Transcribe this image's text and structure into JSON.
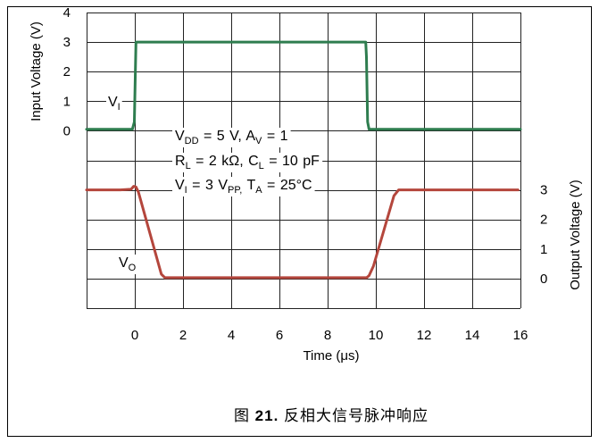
{
  "caption": {
    "prefix": "图 ",
    "number": "21.",
    "title": " 反相大信号脉冲响应"
  },
  "chart_data": {
    "type": "line",
    "xlabel": "Time (μs)",
    "xlim": [
      -2,
      16
    ],
    "x_ticks": [
      0,
      2,
      4,
      6,
      8,
      10,
      12,
      14,
      16
    ],
    "x_grid_step": 2,
    "y_grid_step": 1,
    "grid": true,
    "y_left": {
      "label": "Input Voltage (V)",
      "range": [
        -6,
        4
      ],
      "ticks": [
        0,
        1,
        2,
        3,
        4
      ]
    },
    "y_right": {
      "label": "Output Voltage (V)",
      "range": [
        -1,
        9
      ],
      "ticks": [
        0,
        1,
        2,
        3
      ]
    },
    "series": [
      {
        "label": {
          "base": "V",
          "sub": "I"
        },
        "axis": "left",
        "color": "#2e7d4f",
        "points": [
          [
            -2,
            0.05
          ],
          [
            -0.1,
            0.05
          ],
          [
            -0.02,
            0.3
          ],
          [
            0.05,
            3.0
          ],
          [
            9.58,
            3.0
          ],
          [
            9.61,
            2.5
          ],
          [
            9.66,
            0.3
          ],
          [
            9.72,
            0.05
          ],
          [
            16,
            0.05
          ]
        ]
      },
      {
        "label": {
          "base": "V",
          "sub": "O"
        },
        "axis": "right",
        "color": "#b4463c",
        "points": [
          [
            -2,
            3.0
          ],
          [
            -0.6,
            3.0
          ],
          [
            -0.15,
            3.02
          ],
          [
            -0.05,
            3.12
          ],
          [
            0.05,
            3.1
          ],
          [
            0.15,
            2.92
          ],
          [
            1.1,
            0.15
          ],
          [
            1.25,
            0.03
          ],
          [
            9.62,
            0.03
          ],
          [
            9.72,
            0.1
          ],
          [
            9.9,
            0.42
          ],
          [
            10.75,
            2.8
          ],
          [
            10.95,
            3.0
          ],
          [
            15.9,
            3.0
          ]
        ]
      }
    ],
    "conditions": [
      [
        {
          "t": "V"
        },
        {
          "t": "DD",
          "sub": true
        },
        {
          "t": " = 5 V, A"
        },
        {
          "t": "V",
          "sub": true
        },
        {
          "t": " = 1"
        }
      ],
      [
        {
          "t": "R"
        },
        {
          "t": "L",
          "sub": true
        },
        {
          "t": " = 2 kΩ, C"
        },
        {
          "t": "L",
          "sub": true
        },
        {
          "t": " = 10 pF"
        }
      ],
      [
        {
          "t": "V"
        },
        {
          "t": "I",
          "sub": true
        },
        {
          "t": " = 3 V"
        },
        {
          "t": "PP,",
          "sub": true
        },
        {
          "t": " T"
        },
        {
          "t": "A",
          "sub": true
        },
        {
          "t": " = 25°C"
        }
      ]
    ]
  }
}
